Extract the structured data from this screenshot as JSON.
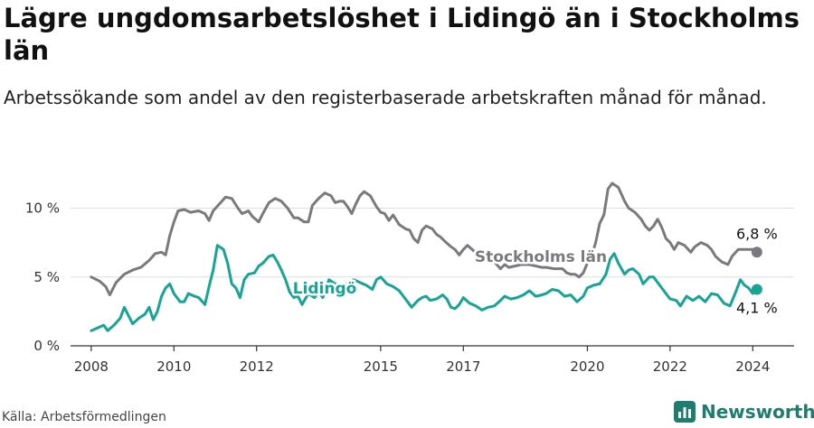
{
  "title": "Lägre ungdomsarbetslöshet i Lidingö än i Stockholms län",
  "subtitle": "Arbetssökande som andel av den registerbaserade arbetskraften månad för månad.",
  "source": "Källa: Arbetsförmedlingen",
  "brand": "Newsworthy",
  "colors": {
    "stockholm": "#7a7a7e",
    "lidingo": "#16a594",
    "grid": "#dddddd",
    "brand": "#1e7d6f"
  },
  "chart_data": {
    "type": "line",
    "title": "Lägre ungdomsarbetslöshet i Lidingö än i Stockholms län",
    "xlabel": "",
    "ylabel": "",
    "x_range": [
      2007.5,
      2025.0
    ],
    "ylim": [
      0,
      12
    ],
    "yticks": [
      0,
      5,
      10
    ],
    "ytick_labels": [
      "0 %",
      "5 %",
      "10 %"
    ],
    "xticks": [
      2008,
      2010,
      2012,
      2015,
      2017,
      2020,
      2022,
      2024
    ],
    "xtick_labels": [
      "2008",
      "2010",
      "2012",
      "2015",
      "2017",
      "2020",
      "2022",
      "2024"
    ],
    "grid": true,
    "series": [
      {
        "name": "Stockholms län",
        "color": "#7a7a7e",
        "end_label": "6,8 %",
        "points": [
          [
            2008.0,
            5.0
          ],
          [
            2008.2,
            4.7
          ],
          [
            2008.35,
            4.3
          ],
          [
            2008.45,
            3.7
          ],
          [
            2008.6,
            4.6
          ],
          [
            2008.8,
            5.2
          ],
          [
            2009.0,
            5.5
          ],
          [
            2009.2,
            5.7
          ],
          [
            2009.4,
            6.2
          ],
          [
            2009.55,
            6.7
          ],
          [
            2009.7,
            6.8
          ],
          [
            2009.8,
            6.6
          ],
          [
            2009.9,
            8.0
          ],
          [
            2010.0,
            9.0
          ],
          [
            2010.1,
            9.8
          ],
          [
            2010.25,
            9.9
          ],
          [
            2010.4,
            9.7
          ],
          [
            2010.6,
            9.8
          ],
          [
            2010.75,
            9.6
          ],
          [
            2010.85,
            9.1
          ],
          [
            2010.95,
            9.8
          ],
          [
            2011.1,
            10.3
          ],
          [
            2011.25,
            10.8
          ],
          [
            2011.4,
            10.7
          ],
          [
            2011.55,
            10.0
          ],
          [
            2011.65,
            9.6
          ],
          [
            2011.8,
            9.8
          ],
          [
            2011.9,
            9.4
          ],
          [
            2012.05,
            9.0
          ],
          [
            2012.15,
            9.6
          ],
          [
            2012.3,
            10.4
          ],
          [
            2012.45,
            10.7
          ],
          [
            2012.6,
            10.5
          ],
          [
            2012.75,
            10.0
          ],
          [
            2012.9,
            9.3
          ],
          [
            2013.0,
            9.3
          ],
          [
            2013.15,
            9.0
          ],
          [
            2013.25,
            9.0
          ],
          [
            2013.35,
            10.2
          ],
          [
            2013.5,
            10.7
          ],
          [
            2013.65,
            11.1
          ],
          [
            2013.8,
            10.9
          ],
          [
            2013.9,
            10.4
          ],
          [
            2014.0,
            10.5
          ],
          [
            2014.1,
            10.5
          ],
          [
            2014.2,
            10.1
          ],
          [
            2014.3,
            9.6
          ],
          [
            2014.4,
            10.3
          ],
          [
            2014.5,
            10.9
          ],
          [
            2014.6,
            11.2
          ],
          [
            2014.75,
            10.9
          ],
          [
            2014.9,
            10.1
          ],
          [
            2015.0,
            9.7
          ],
          [
            2015.1,
            9.6
          ],
          [
            2015.2,
            9.1
          ],
          [
            2015.3,
            9.5
          ],
          [
            2015.45,
            8.8
          ],
          [
            2015.6,
            8.5
          ],
          [
            2015.7,
            8.4
          ],
          [
            2015.8,
            7.8
          ],
          [
            2015.9,
            7.5
          ],
          [
            2016.0,
            8.4
          ],
          [
            2016.1,
            8.7
          ],
          [
            2016.25,
            8.5
          ],
          [
            2016.35,
            8.1
          ],
          [
            2016.45,
            7.9
          ],
          [
            2016.55,
            7.6
          ],
          [
            2016.7,
            7.2
          ],
          [
            2016.8,
            7.0
          ],
          [
            2016.9,
            6.6
          ],
          [
            2017.0,
            7.0
          ],
          [
            2017.1,
            7.3
          ],
          [
            2017.25,
            6.9
          ],
          [
            2017.4,
            6.8
          ],
          [
            2017.5,
            6.4
          ],
          [
            2017.6,
            6.2
          ],
          [
            2017.75,
            6.1
          ],
          [
            2017.9,
            5.6
          ],
          [
            2018.0,
            5.9
          ],
          [
            2018.1,
            5.7
          ],
          [
            2018.25,
            5.8
          ],
          [
            2018.4,
            5.9
          ],
          [
            2018.5,
            5.9
          ],
          [
            2018.6,
            5.9
          ],
          [
            2018.75,
            5.8
          ],
          [
            2018.9,
            5.7
          ],
          [
            2019.0,
            5.7
          ],
          [
            2019.2,
            5.6
          ],
          [
            2019.4,
            5.6
          ],
          [
            2019.5,
            5.3
          ],
          [
            2019.6,
            5.2
          ],
          [
            2019.7,
            5.2
          ],
          [
            2019.8,
            5.0
          ],
          [
            2019.9,
            5.3
          ],
          [
            2020.0,
            6.0
          ],
          [
            2020.1,
            6.5
          ],
          [
            2020.2,
            7.5
          ],
          [
            2020.3,
            8.9
          ],
          [
            2020.4,
            9.5
          ],
          [
            2020.5,
            11.4
          ],
          [
            2020.6,
            11.8
          ],
          [
            2020.75,
            11.5
          ],
          [
            2020.9,
            10.5
          ],
          [
            2021.0,
            10.0
          ],
          [
            2021.15,
            9.7
          ],
          [
            2021.3,
            9.2
          ],
          [
            2021.4,
            8.7
          ],
          [
            2021.5,
            8.4
          ],
          [
            2021.6,
            8.7
          ],
          [
            2021.7,
            9.2
          ],
          [
            2021.8,
            8.6
          ],
          [
            2021.9,
            7.8
          ],
          [
            2022.0,
            7.5
          ],
          [
            2022.1,
            7.0
          ],
          [
            2022.2,
            7.5
          ],
          [
            2022.35,
            7.3
          ],
          [
            2022.5,
            6.8
          ],
          [
            2022.6,
            7.2
          ],
          [
            2022.75,
            7.5
          ],
          [
            2022.9,
            7.3
          ],
          [
            2023.0,
            7.0
          ],
          [
            2023.1,
            6.5
          ],
          [
            2023.25,
            6.1
          ],
          [
            2023.4,
            5.9
          ],
          [
            2023.5,
            6.5
          ],
          [
            2023.65,
            7.0
          ],
          [
            2023.8,
            7.0
          ],
          [
            2023.9,
            7.0
          ],
          [
            2024.0,
            7.0
          ],
          [
            2024.1,
            6.8
          ]
        ]
      },
      {
        "name": "Lidingö",
        "color": "#16a594",
        "end_label": "4,1 %",
        "points": [
          [
            2008.0,
            1.1
          ],
          [
            2008.15,
            1.3
          ],
          [
            2008.3,
            1.5
          ],
          [
            2008.4,
            1.1
          ],
          [
            2008.55,
            1.5
          ],
          [
            2008.7,
            2.0
          ],
          [
            2008.8,
            2.8
          ],
          [
            2008.9,
            2.2
          ],
          [
            2009.0,
            1.6
          ],
          [
            2009.15,
            2.0
          ],
          [
            2009.3,
            2.3
          ],
          [
            2009.4,
            2.8
          ],
          [
            2009.5,
            1.9
          ],
          [
            2009.6,
            2.5
          ],
          [
            2009.7,
            3.6
          ],
          [
            2009.8,
            4.2
          ],
          [
            2009.9,
            4.5
          ],
          [
            2010.0,
            3.8
          ],
          [
            2010.15,
            3.2
          ],
          [
            2010.25,
            3.2
          ],
          [
            2010.35,
            3.8
          ],
          [
            2010.5,
            3.6
          ],
          [
            2010.6,
            3.5
          ],
          [
            2010.75,
            3.0
          ],
          [
            2010.85,
            4.3
          ],
          [
            2010.95,
            5.5
          ],
          [
            2011.05,
            7.3
          ],
          [
            2011.2,
            7.0
          ],
          [
            2011.3,
            6.0
          ],
          [
            2011.4,
            4.5
          ],
          [
            2011.5,
            4.2
          ],
          [
            2011.6,
            3.5
          ],
          [
            2011.7,
            4.8
          ],
          [
            2011.8,
            5.2
          ],
          [
            2011.95,
            5.3
          ],
          [
            2012.05,
            5.8
          ],
          [
            2012.15,
            6.0
          ],
          [
            2012.3,
            6.5
          ],
          [
            2012.4,
            6.6
          ],
          [
            2012.5,
            6.1
          ],
          [
            2012.6,
            5.5
          ],
          [
            2012.7,
            4.8
          ],
          [
            2012.8,
            3.9
          ],
          [
            2012.9,
            3.5
          ],
          [
            2013.0,
            3.6
          ],
          [
            2013.1,
            3.0
          ],
          [
            2013.25,
            3.8
          ],
          [
            2013.4,
            3.5
          ],
          [
            2013.5,
            3.9
          ],
          [
            2013.6,
            3.5
          ],
          [
            2013.75,
            4.8
          ],
          [
            2013.9,
            4.5
          ],
          [
            2014.0,
            4.4
          ],
          [
            2014.2,
            4.5
          ],
          [
            2014.35,
            4.8
          ],
          [
            2014.5,
            4.6
          ],
          [
            2014.65,
            4.4
          ],
          [
            2014.8,
            4.1
          ],
          [
            2014.9,
            4.8
          ],
          [
            2015.0,
            5.0
          ],
          [
            2015.15,
            4.5
          ],
          [
            2015.3,
            4.3
          ],
          [
            2015.45,
            4.0
          ],
          [
            2015.55,
            3.6
          ],
          [
            2015.65,
            3.2
          ],
          [
            2015.75,
            2.8
          ],
          [
            2015.9,
            3.3
          ],
          [
            2016.0,
            3.5
          ],
          [
            2016.1,
            3.6
          ],
          [
            2016.2,
            3.3
          ],
          [
            2016.35,
            3.4
          ],
          [
            2016.5,
            3.7
          ],
          [
            2016.6,
            3.4
          ],
          [
            2016.7,
            2.8
          ],
          [
            2016.8,
            2.7
          ],
          [
            2016.9,
            3.0
          ],
          [
            2017.0,
            3.5
          ],
          [
            2017.15,
            3.1
          ],
          [
            2017.3,
            2.9
          ],
          [
            2017.45,
            2.6
          ],
          [
            2017.6,
            2.8
          ],
          [
            2017.75,
            2.9
          ],
          [
            2017.9,
            3.3
          ],
          [
            2018.0,
            3.6
          ],
          [
            2018.15,
            3.4
          ],
          [
            2018.3,
            3.5
          ],
          [
            2018.45,
            3.7
          ],
          [
            2018.6,
            4.0
          ],
          [
            2018.75,
            3.6
          ],
          [
            2018.9,
            3.7
          ],
          [
            2019.0,
            3.8
          ],
          [
            2019.15,
            4.1
          ],
          [
            2019.3,
            4.0
          ],
          [
            2019.45,
            3.6
          ],
          [
            2019.6,
            3.7
          ],
          [
            2019.75,
            3.2
          ],
          [
            2019.9,
            3.6
          ],
          [
            2020.0,
            4.2
          ],
          [
            2020.15,
            4.4
          ],
          [
            2020.3,
            4.5
          ],
          [
            2020.45,
            5.2
          ],
          [
            2020.55,
            6.3
          ],
          [
            2020.65,
            6.7
          ],
          [
            2020.75,
            6.0
          ],
          [
            2020.9,
            5.2
          ],
          [
            2021.0,
            5.5
          ],
          [
            2021.1,
            5.6
          ],
          [
            2021.25,
            5.2
          ],
          [
            2021.35,
            4.5
          ],
          [
            2021.5,
            5.0
          ],
          [
            2021.6,
            5.0
          ],
          [
            2021.75,
            4.4
          ],
          [
            2021.9,
            3.8
          ],
          [
            2022.0,
            3.4
          ],
          [
            2022.15,
            3.3
          ],
          [
            2022.25,
            2.9
          ],
          [
            2022.4,
            3.6
          ],
          [
            2022.55,
            3.3
          ],
          [
            2022.7,
            3.6
          ],
          [
            2022.85,
            3.2
          ],
          [
            2023.0,
            3.8
          ],
          [
            2023.15,
            3.7
          ],
          [
            2023.3,
            3.1
          ],
          [
            2023.45,
            2.9
          ],
          [
            2023.6,
            4.0
          ],
          [
            2023.7,
            4.8
          ],
          [
            2023.8,
            4.4
          ],
          [
            2023.9,
            4.2
          ],
          [
            2024.0,
            3.8
          ],
          [
            2024.1,
            4.1
          ]
        ]
      }
    ]
  }
}
